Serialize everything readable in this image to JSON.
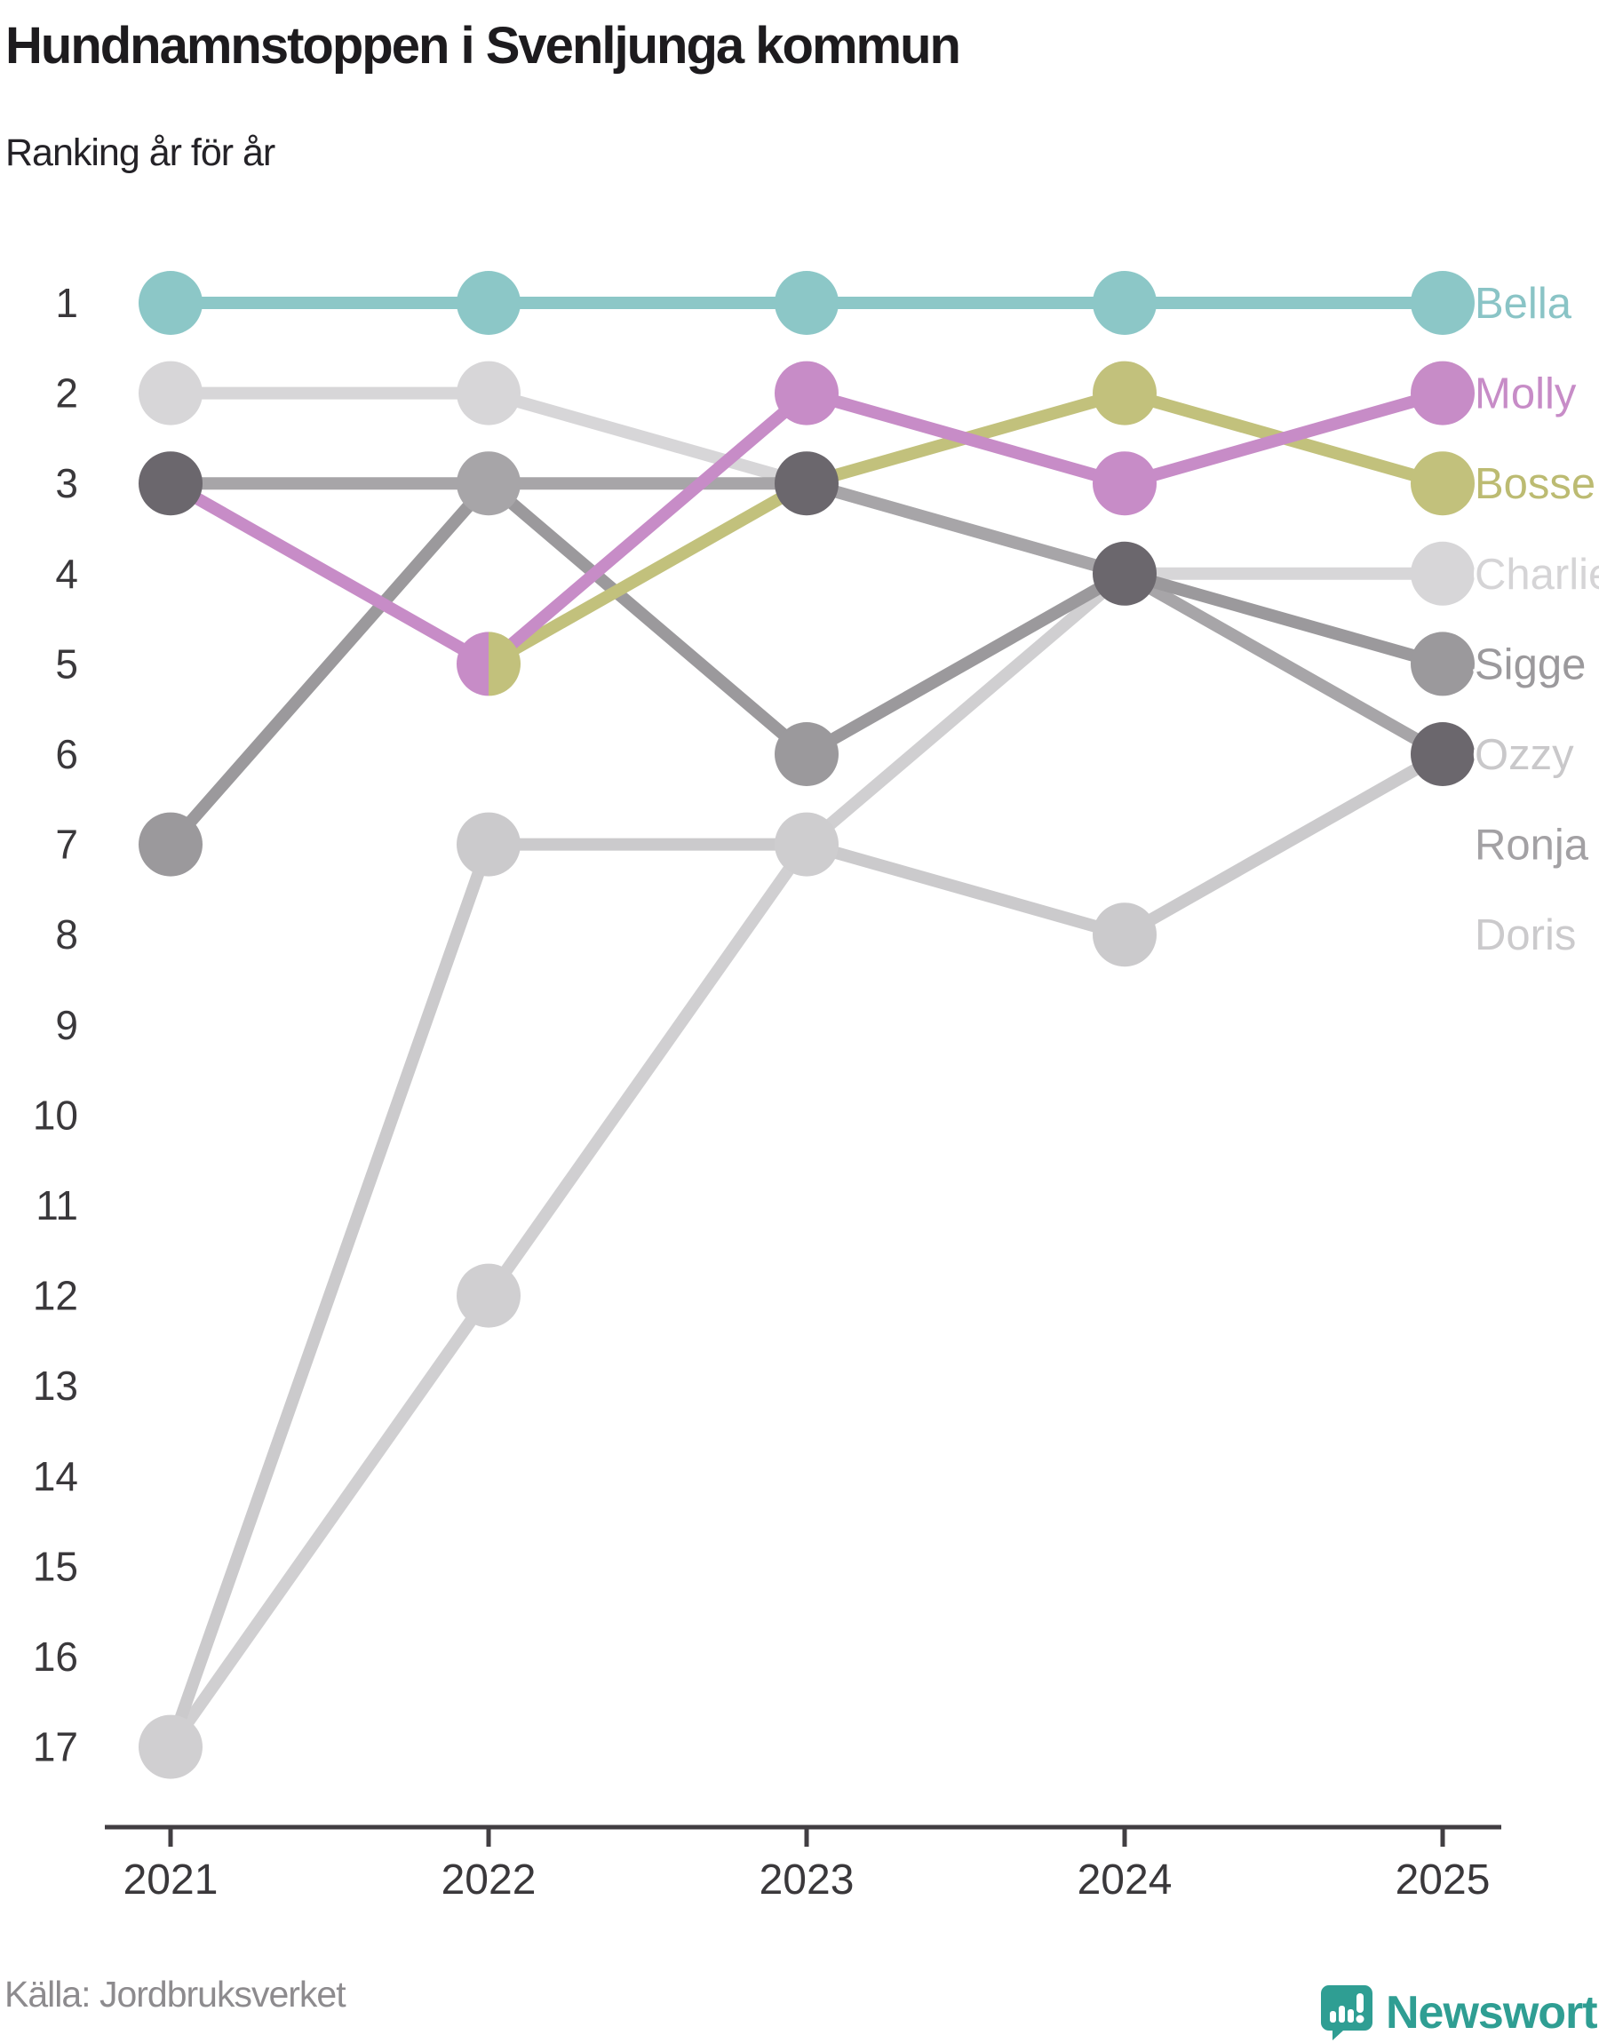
{
  "header": {
    "title": "Hundnamnstoppen i Svenljunga kommun",
    "subtitle": "Ranking år för år"
  },
  "footer": {
    "source": "Källa: Jordbruksverket",
    "logo_text": "Newsworthy",
    "logo_color": "#2F9E93"
  },
  "chart_data": {
    "type": "line",
    "subtype": "bump-chart-ranking",
    "title": "Hundnamnstoppen i Svenljunga kommun",
    "subtitle": "Ranking år för år",
    "years": [
      2021,
      2022,
      2023,
      2024,
      2025
    ],
    "rank_axis": {
      "min": 1,
      "max": 17,
      "inverted": true,
      "grid": false
    },
    "legend_position": "right-edge-labels",
    "series": [
      {
        "name": "Charlie",
        "color": "#D7D6D8",
        "label_color": "#D5D4D6",
        "label_row": 4,
        "ranks": [
          2,
          2,
          3,
          4,
          4
        ]
      },
      {
        "name": "Doris",
        "color": "#D0CFD1",
        "label_color": "#CBCACC",
        "label_row": 8,
        "ranks": [
          17,
          12,
          7,
          4,
          null
        ]
      },
      {
        "name": "Ozzy",
        "color": "#CBCACC",
        "label_color": "#C9C8CA",
        "label_row": 6,
        "ranks": [
          17,
          7,
          7,
          8,
          6
        ]
      },
      {
        "name": "Ronja",
        "color": "#A7A5A8",
        "label_color": "#A3A1A4",
        "label_row": 7,
        "ranks": [
          3,
          3,
          3,
          4,
          6
        ]
      },
      {
        "name": "Sigge",
        "color": "#9B999C",
        "label_color": "#9B999C",
        "label_row": 5,
        "ranks": [
          7,
          3,
          6,
          4,
          5
        ]
      },
      {
        "name": "Bosse",
        "color": "#C2C17C",
        "label_color": "#BCBB72",
        "label_row": 3,
        "ranks": [
          null,
          5,
          3,
          2,
          3
        ]
      },
      {
        "name": "Molly",
        "color": "#C78CC7",
        "label_color": "#C78CC7",
        "label_row": 2,
        "ranks": [
          3,
          5,
          2,
          3,
          2
        ]
      },
      {
        "name": "Bella",
        "color": "#8CC7C7",
        "label_color": "#8AC4C6",
        "label_row": 1,
        "ranks": [
          1,
          1,
          1,
          1,
          1
        ]
      }
    ],
    "tie_dot_color": "#6B676D",
    "dots": [
      {
        "year_index": 0,
        "rank": 1,
        "fill": "#8CC7C7"
      },
      {
        "year_index": 0,
        "rank": 2,
        "fill": "#D7D6D8"
      },
      {
        "year_index": 0,
        "rank": 3,
        "fill": "#6B676D",
        "tie": [
          "Molly",
          "Ronja"
        ]
      },
      {
        "year_index": 0,
        "rank": 7,
        "fill": "#9B999C"
      },
      {
        "year_index": 0,
        "rank": 17,
        "fill": "#D0CFD1",
        "tie": [
          "Ozzy",
          "Doris"
        ]
      },
      {
        "year_index": 1,
        "rank": 1,
        "fill": "#8CC7C7"
      },
      {
        "year_index": 1,
        "rank": 2,
        "fill": "#D7D6D8"
      },
      {
        "year_index": 1,
        "rank": 3,
        "fill": "#A7A5A8",
        "tie": [
          "Ronja",
          "Sigge"
        ]
      },
      {
        "year_index": 1,
        "rank": 5,
        "fill": "split",
        "split_left": "#C78CC7",
        "split_right": "#C2C17C",
        "tie": [
          "Molly",
          "Bosse"
        ]
      },
      {
        "year_index": 1,
        "rank": 7,
        "fill": "#CBCACC"
      },
      {
        "year_index": 1,
        "rank": 12,
        "fill": "#D0CFD1"
      },
      {
        "year_index": 2,
        "rank": 1,
        "fill": "#8CC7C7"
      },
      {
        "year_index": 2,
        "rank": 2,
        "fill": "#C78CC7"
      },
      {
        "year_index": 2,
        "rank": 3,
        "fill": "#6B676D",
        "tie": [
          "Bosse",
          "Charlie",
          "Ronja"
        ]
      },
      {
        "year_index": 2,
        "rank": 6,
        "fill": "#9B999C"
      },
      {
        "year_index": 2,
        "rank": 7,
        "fill": "#CECDCF",
        "tie": [
          "Ozzy",
          "Doris"
        ]
      },
      {
        "year_index": 3,
        "rank": 1,
        "fill": "#8CC7C7"
      },
      {
        "year_index": 3,
        "rank": 2,
        "fill": "#C2C17C"
      },
      {
        "year_index": 3,
        "rank": 3,
        "fill": "#C78CC7"
      },
      {
        "year_index": 3,
        "rank": 4,
        "fill": "#6B676D",
        "tie": [
          "Charlie",
          "Sigge",
          "Ronja",
          "Doris"
        ]
      },
      {
        "year_index": 3,
        "rank": 8,
        "fill": "#CBCACC"
      },
      {
        "year_index": 4,
        "rank": 1,
        "fill": "#8CC7C7"
      },
      {
        "year_index": 4,
        "rank": 2,
        "fill": "#C78CC7"
      },
      {
        "year_index": 4,
        "rank": 3,
        "fill": "#C2C17C"
      },
      {
        "year_index": 4,
        "rank": 4,
        "fill": "#D7D6D8"
      },
      {
        "year_index": 4,
        "rank": 5,
        "fill": "#9B999C"
      },
      {
        "year_index": 4,
        "rank": 6,
        "fill": "#6B676D",
        "tie": [
          "Ozzy",
          "Ronja"
        ]
      }
    ],
    "xlabel": "",
    "ylabel": "",
    "layout": {
      "x_positions": [
        192,
        550,
        908,
        1266,
        1624
      ],
      "y_top": 341,
      "row_height": 101.6,
      "dot_radius": 36,
      "line_width": 14,
      "axis_y": 2057,
      "axis_x1": 118,
      "axis_x2": 1690,
      "axis_color": "#413E42",
      "tick_length": 22,
      "tick_label_color": "#3A383B",
      "tick_font_size": 46,
      "series_label_x": 1660,
      "series_label_font_size": 49
    }
  }
}
